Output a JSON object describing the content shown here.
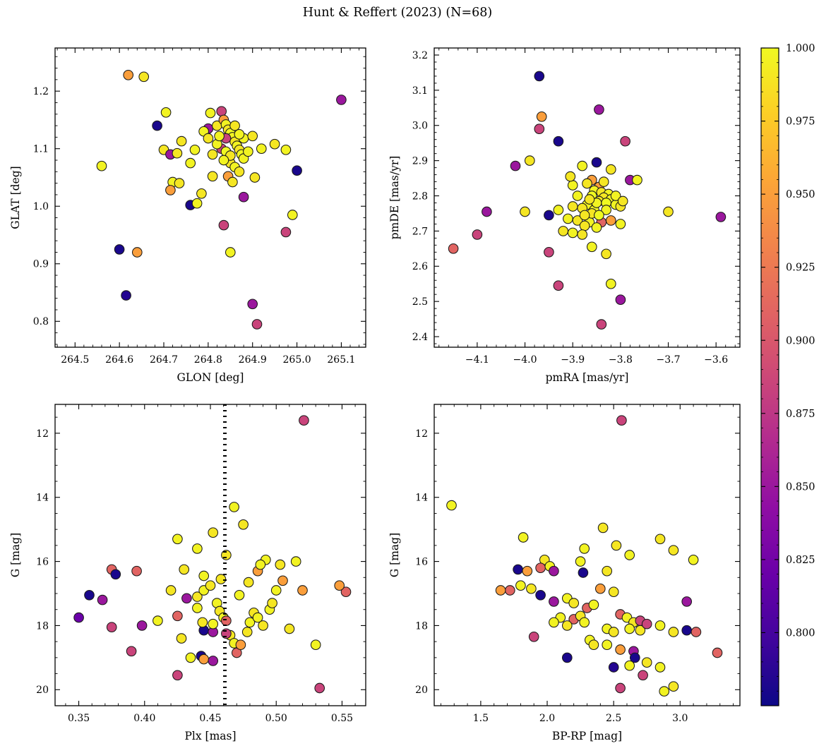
{
  "title": "Hunt & Reffert (2023) (N=68)",
  "colorbar": {
    "vmin": 0.775,
    "vmax": 1.0,
    "ticks": [
      1.0,
      0.975,
      0.95,
      0.925,
      0.9,
      0.875,
      0.85,
      0.825,
      0.8
    ],
    "tick_labels": [
      "1.000",
      "0.975",
      "0.950",
      "0.925",
      "0.900",
      "0.875",
      "0.850",
      "0.825",
      "0.800"
    ],
    "minor_step": 0.005,
    "colormap": "plasma",
    "color_low": "#0d0887",
    "color_high": "#f0f921"
  },
  "chart_data": [
    {
      "type": "scatter",
      "name": "glon-glat",
      "xlabel": "GLON [deg]",
      "ylabel": "GLAT [deg]",
      "xlim": [
        264.455,
        265.155
      ],
      "ylim": [
        0.755,
        1.275
      ],
      "xticks": [
        264.5,
        264.6,
        264.7,
        264.8,
        264.9,
        265.0,
        265.1
      ],
      "xtick_labels": [
        "264.5",
        "264.6",
        "264.7",
        "264.8",
        "264.9",
        "265.0",
        "265.1"
      ],
      "yticks": [
        0.8,
        0.9,
        1.0,
        1.1,
        1.2
      ],
      "ytick_labels": [
        "0.8",
        "0.9",
        "1.0",
        "1.1",
        "1.2"
      ],
      "x": [
        264.56,
        264.62,
        264.655,
        264.6,
        264.615,
        264.64,
        264.685,
        264.705,
        264.7,
        264.715,
        264.72,
        264.715,
        264.735,
        264.76,
        264.775,
        264.785,
        264.8,
        264.805,
        264.82,
        264.83,
        264.835,
        264.84,
        264.845,
        264.85,
        264.855,
        264.84,
        264.86,
        264.865,
        264.87,
        264.875,
        264.88,
        264.85,
        264.86,
        264.845,
        264.855,
        264.83,
        264.82,
        264.81,
        264.88,
        264.9,
        264.92,
        264.95,
        264.975,
        265.0,
        264.99,
        264.905,
        264.88,
        264.835,
        264.85,
        264.9,
        264.91,
        264.975,
        265.1,
        264.73,
        264.79,
        264.8,
        264.825,
        264.86,
        264.87,
        264.84,
        264.85,
        264.835,
        264.87,
        264.89,
        264.81,
        264.77,
        264.74,
        264.76
      ],
      "y": [
        1.07,
        1.228,
        1.225,
        0.925,
        0.845,
        0.92,
        1.14,
        1.163,
        1.098,
        1.09,
        1.042,
        1.028,
        1.04,
        1.002,
        1.005,
        1.022,
        1.135,
        1.162,
        1.14,
        1.165,
        1.15,
        1.142,
        1.133,
        1.127,
        1.12,
        1.118,
        1.112,
        1.105,
        1.098,
        1.09,
        1.083,
        1.075,
        1.068,
        1.052,
        1.042,
        1.1,
        1.108,
        1.09,
        1.118,
        1.122,
        1.1,
        1.108,
        1.098,
        1.062,
        0.985,
        1.05,
        1.016,
        0.967,
        0.92,
        0.83,
        0.795,
        0.955,
        1.185,
        1.092,
        1.13,
        1.118,
        1.122,
        1.14,
        1.125,
        1.095,
        1.088,
        1.08,
        1.06,
        1.095,
        1.052,
        1.098,
        1.113,
        1.075
      ],
      "c": [
        0.997,
        0.95,
        0.99,
        0.78,
        0.785,
        0.95,
        0.78,
        0.997,
        0.99,
        0.85,
        0.997,
        0.95,
        0.99,
        0.78,
        0.997,
        0.99,
        0.85,
        0.997,
        0.99,
        0.885,
        0.95,
        0.997,
        0.99,
        1.0,
        0.997,
        0.885,
        0.99,
        0.997,
        0.99,
        1.0,
        0.997,
        0.99,
        0.997,
        0.95,
        0.99,
        0.885,
        0.997,
        0.99,
        0.997,
        0.99,
        0.997,
        0.99,
        0.997,
        0.78,
        0.997,
        0.99,
        0.85,
        0.885,
        0.997,
        0.85,
        0.885,
        0.885,
        0.85,
        0.99,
        0.997,
        0.99,
        0.997,
        0.99,
        0.997,
        1.0,
        0.99,
        0.997,
        0.99,
        0.997,
        0.99,
        0.997,
        0.99,
        0.997
      ]
    },
    {
      "type": "scatter",
      "name": "pmra-pmde",
      "xlabel": "pmRA [mas/yr]",
      "ylabel": "pmDE [mas/yr]",
      "xlim": [
        -4.19,
        -3.55
      ],
      "ylim": [
        2.37,
        3.22
      ],
      "xticks": [
        -4.1,
        -4.0,
        -3.9,
        -3.8,
        -3.7,
        -3.6
      ],
      "xtick_labels": [
        "−4.1",
        "−4.0",
        "−3.9",
        "−3.8",
        "−3.7",
        "−3.6"
      ],
      "yticks": [
        2.4,
        2.5,
        2.6,
        2.7,
        2.8,
        2.9,
        3.0,
        3.1,
        3.2
      ],
      "ytick_labels": [
        "2.4",
        "2.5",
        "2.6",
        "2.7",
        "2.8",
        "2.9",
        "3.0",
        "3.1",
        "3.2"
      ],
      "x": [
        -3.97,
        -3.845,
        -3.965,
        -3.97,
        -3.93,
        -3.79,
        -3.99,
        -3.85,
        -3.88,
        -3.82,
        -4.02,
        -3.9,
        -3.86,
        -3.78,
        -3.87,
        -3.845,
        -3.855,
        -3.84,
        -3.825,
        -3.86,
        -3.835,
        -3.82,
        -3.845,
        -3.83,
        -3.81,
        -3.8,
        -3.87,
        -3.88,
        -3.855,
        -4.08,
        -4.0,
        -3.93,
        -3.7,
        -3.59,
        -3.91,
        -3.89,
        -3.865,
        -3.84,
        -3.875,
        -3.85,
        -3.95,
        -3.92,
        -3.9,
        -3.88,
        -4.1,
        -4.15,
        -3.95,
        -3.86,
        -3.83,
        -3.93,
        -3.82,
        -3.8,
        -3.84,
        -3.835,
        -3.85,
        -3.865,
        -3.89,
        -3.9,
        -3.81,
        -3.795,
        -3.83,
        -3.86,
        -3.845,
        -3.875,
        -3.82,
        -3.8,
        -3.905,
        -3.765
      ],
      "y": [
        3.14,
        3.045,
        3.025,
        2.99,
        2.955,
        2.955,
        2.9,
        2.895,
        2.885,
        2.875,
        2.885,
        2.83,
        2.845,
        2.845,
        2.835,
        2.825,
        2.815,
        2.81,
        2.805,
        2.8,
        2.795,
        2.79,
        2.785,
        2.78,
        2.775,
        2.77,
        2.775,
        2.765,
        2.76,
        2.755,
        2.755,
        2.76,
        2.755,
        2.74,
        2.735,
        2.73,
        2.725,
        2.725,
        2.715,
        2.71,
        2.745,
        2.7,
        2.695,
        2.69,
        2.69,
        2.65,
        2.64,
        2.655,
        2.635,
        2.545,
        2.55,
        2.505,
        2.435,
        2.84,
        2.78,
        2.79,
        2.8,
        2.77,
        2.8,
        2.785,
        2.76,
        2.75,
        2.745,
        2.745,
        2.73,
        2.72,
        2.855,
        2.845
      ],
      "c": [
        0.78,
        0.85,
        0.95,
        0.885,
        0.78,
        0.885,
        0.99,
        0.78,
        0.997,
        0.99,
        0.85,
        0.997,
        0.95,
        0.85,
        0.99,
        0.95,
        0.997,
        0.99,
        0.997,
        1.0,
        0.99,
        0.997,
        0.99,
        1.0,
        0.997,
        0.99,
        0.997,
        0.99,
        0.997,
        0.85,
        0.99,
        0.997,
        0.99,
        0.85,
        0.997,
        0.99,
        0.997,
        0.91,
        0.99,
        0.997,
        0.78,
        0.99,
        0.997,
        0.99,
        0.885,
        0.91,
        0.885,
        0.997,
        0.99,
        0.885,
        0.997,
        0.85,
        0.885,
        0.99,
        0.997,
        0.99,
        0.997,
        0.99,
        0.997,
        0.99,
        0.997,
        0.99,
        1.0,
        0.99,
        0.95,
        0.997,
        0.99,
        0.997
      ]
    },
    {
      "type": "scatter",
      "name": "plx-g",
      "xlabel": "Plx [mas]",
      "ylabel": "G [mag]",
      "xlim": [
        0.332,
        0.568
      ],
      "ylim": [
        20.5,
        11.1
      ],
      "y_inverted": true,
      "vline_x": 0.461,
      "xticks": [
        0.35,
        0.4,
        0.45,
        0.5,
        0.55
      ],
      "xtick_labels": [
        "0.35",
        "0.40",
        "0.45",
        "0.50",
        "0.55"
      ],
      "yticks": [
        12,
        14,
        16,
        18,
        20
      ],
      "ytick_labels": [
        "12",
        "14",
        "16",
        "18",
        "20"
      ],
      "x": [
        0.521,
        0.468,
        0.475,
        0.425,
        0.452,
        0.44,
        0.462,
        0.492,
        0.503,
        0.515,
        0.486,
        0.43,
        0.445,
        0.458,
        0.375,
        0.378,
        0.394,
        0.358,
        0.368,
        0.35,
        0.375,
        0.398,
        0.39,
        0.41,
        0.425,
        0.428,
        0.425,
        0.435,
        0.443,
        0.445,
        0.452,
        0.445,
        0.452,
        0.44,
        0.44,
        0.445,
        0.45,
        0.455,
        0.457,
        0.46,
        0.462,
        0.465,
        0.468,
        0.47,
        0.473,
        0.478,
        0.48,
        0.483,
        0.486,
        0.49,
        0.495,
        0.497,
        0.5,
        0.505,
        0.52,
        0.553,
        0.548,
        0.51,
        0.53,
        0.533,
        0.42,
        0.432,
        0.462,
        0.472,
        0.479,
        0.488,
        0.444,
        0.452
      ],
      "y": [
        11.6,
        14.3,
        14.85,
        15.3,
        15.1,
        15.6,
        15.8,
        15.95,
        16.1,
        16.0,
        16.3,
        16.25,
        16.45,
        16.55,
        16.25,
        16.4,
        16.3,
        17.05,
        17.2,
        17.75,
        18.05,
        18.0,
        18.8,
        17.85,
        17.7,
        18.4,
        19.55,
        19.0,
        18.95,
        19.05,
        19.1,
        18.15,
        18.2,
        17.45,
        17.1,
        16.9,
        16.75,
        17.3,
        17.55,
        17.75,
        17.85,
        18.3,
        18.55,
        18.85,
        18.6,
        18.2,
        17.9,
        17.6,
        17.75,
        18.0,
        17.5,
        17.3,
        16.9,
        16.6,
        16.9,
        16.95,
        16.75,
        18.1,
        18.6,
        19.95,
        16.9,
        17.15,
        18.25,
        17.05,
        16.65,
        16.1,
        17.9,
        17.95
      ],
      "c": [
        0.885,
        0.997,
        0.99,
        0.997,
        0.99,
        0.997,
        0.99,
        0.997,
        0.99,
        0.997,
        0.95,
        0.99,
        0.997,
        0.99,
        0.91,
        0.78,
        0.91,
        0.78,
        0.85,
        0.82,
        0.885,
        0.85,
        0.885,
        0.997,
        0.91,
        0.99,
        0.885,
        0.997,
        0.78,
        0.95,
        0.85,
        0.78,
        0.85,
        0.997,
        0.99,
        0.997,
        0.99,
        0.997,
        0.99,
        0.997,
        0.91,
        0.99,
        0.997,
        0.91,
        0.95,
        0.99,
        0.997,
        0.99,
        0.997,
        0.99,
        0.997,
        0.99,
        0.997,
        0.95,
        0.95,
        0.91,
        0.95,
        0.99,
        0.997,
        0.885,
        0.99,
        0.85,
        0.885,
        0.997,
        0.99,
        0.997,
        0.99,
        0.997
      ]
    },
    {
      "type": "scatter",
      "name": "bprp-g",
      "xlabel": "BP-RP [mag]",
      "ylabel": "G [mag]",
      "xlim": [
        1.15,
        3.45
      ],
      "ylim": [
        20.5,
        11.1
      ],
      "y_inverted": true,
      "xticks": [
        1.5,
        2.0,
        2.5,
        3.0
      ],
      "xtick_labels": [
        "1.5",
        "2.0",
        "2.5",
        "3.0"
      ],
      "yticks": [
        12,
        14,
        16,
        18,
        20
      ],
      "ytick_labels": [
        "12",
        "14",
        "16",
        "18",
        "20"
      ],
      "x": [
        2.56,
        1.28,
        2.42,
        1.82,
        2.85,
        2.28,
        2.52,
        2.62,
        2.95,
        3.1,
        1.98,
        2.25,
        1.78,
        1.85,
        1.95,
        2.02,
        2.05,
        2.27,
        2.45,
        1.72,
        1.65,
        1.8,
        1.88,
        1.95,
        2.05,
        2.15,
        2.2,
        2.3,
        2.35,
        2.4,
        2.5,
        2.55,
        2.6,
        2.65,
        2.7,
        3.05,
        2.1,
        2.2,
        2.25,
        2.28,
        2.15,
        2.05,
        1.9,
        2.45,
        2.5,
        2.62,
        2.7,
        2.75,
        2.85,
        2.95,
        3.05,
        3.12,
        2.32,
        2.35,
        2.45,
        2.55,
        2.65,
        2.66,
        2.15,
        2.5,
        2.62,
        2.75,
        2.85,
        3.28,
        2.55,
        2.72,
        2.88,
        2.95
      ],
      "y": [
        11.6,
        14.25,
        14.95,
        15.25,
        15.3,
        15.6,
        15.5,
        15.8,
        15.65,
        15.95,
        15.95,
        16.0,
        16.25,
        16.3,
        16.2,
        16.15,
        16.3,
        16.35,
        16.3,
        16.9,
        16.9,
        16.75,
        16.85,
        17.05,
        17.25,
        17.15,
        17.3,
        17.45,
        17.35,
        16.85,
        16.95,
        17.65,
        17.75,
        17.9,
        17.85,
        17.25,
        17.75,
        17.8,
        17.7,
        17.9,
        18.0,
        17.9,
        18.35,
        18.1,
        18.2,
        18.1,
        18.15,
        17.95,
        18.0,
        18.2,
        18.15,
        18.2,
        18.45,
        18.6,
        18.6,
        18.75,
        18.8,
        19.0,
        19.0,
        19.3,
        19.25,
        19.15,
        19.3,
        18.85,
        19.95,
        19.55,
        20.05,
        19.9
      ],
      "c": [
        0.885,
        0.997,
        0.99,
        0.997,
        0.99,
        0.997,
        0.99,
        0.997,
        0.99,
        0.997,
        0.99,
        0.997,
        0.78,
        0.95,
        0.91,
        0.997,
        0.85,
        0.78,
        0.99,
        0.91,
        0.95,
        0.997,
        0.99,
        0.78,
        0.85,
        0.997,
        0.99,
        0.91,
        0.997,
        0.95,
        0.99,
        0.91,
        0.997,
        0.99,
        0.885,
        0.85,
        0.997,
        0.91,
        0.99,
        0.997,
        0.99,
        0.997,
        0.885,
        0.997,
        0.99,
        0.997,
        0.99,
        0.885,
        0.997,
        0.99,
        0.78,
        0.91,
        0.997,
        0.99,
        0.997,
        0.95,
        0.85,
        0.78,
        0.78,
        0.785,
        0.997,
        0.99,
        0.997,
        0.91,
        0.885,
        0.885,
        0.997,
        0.99
      ]
    }
  ]
}
